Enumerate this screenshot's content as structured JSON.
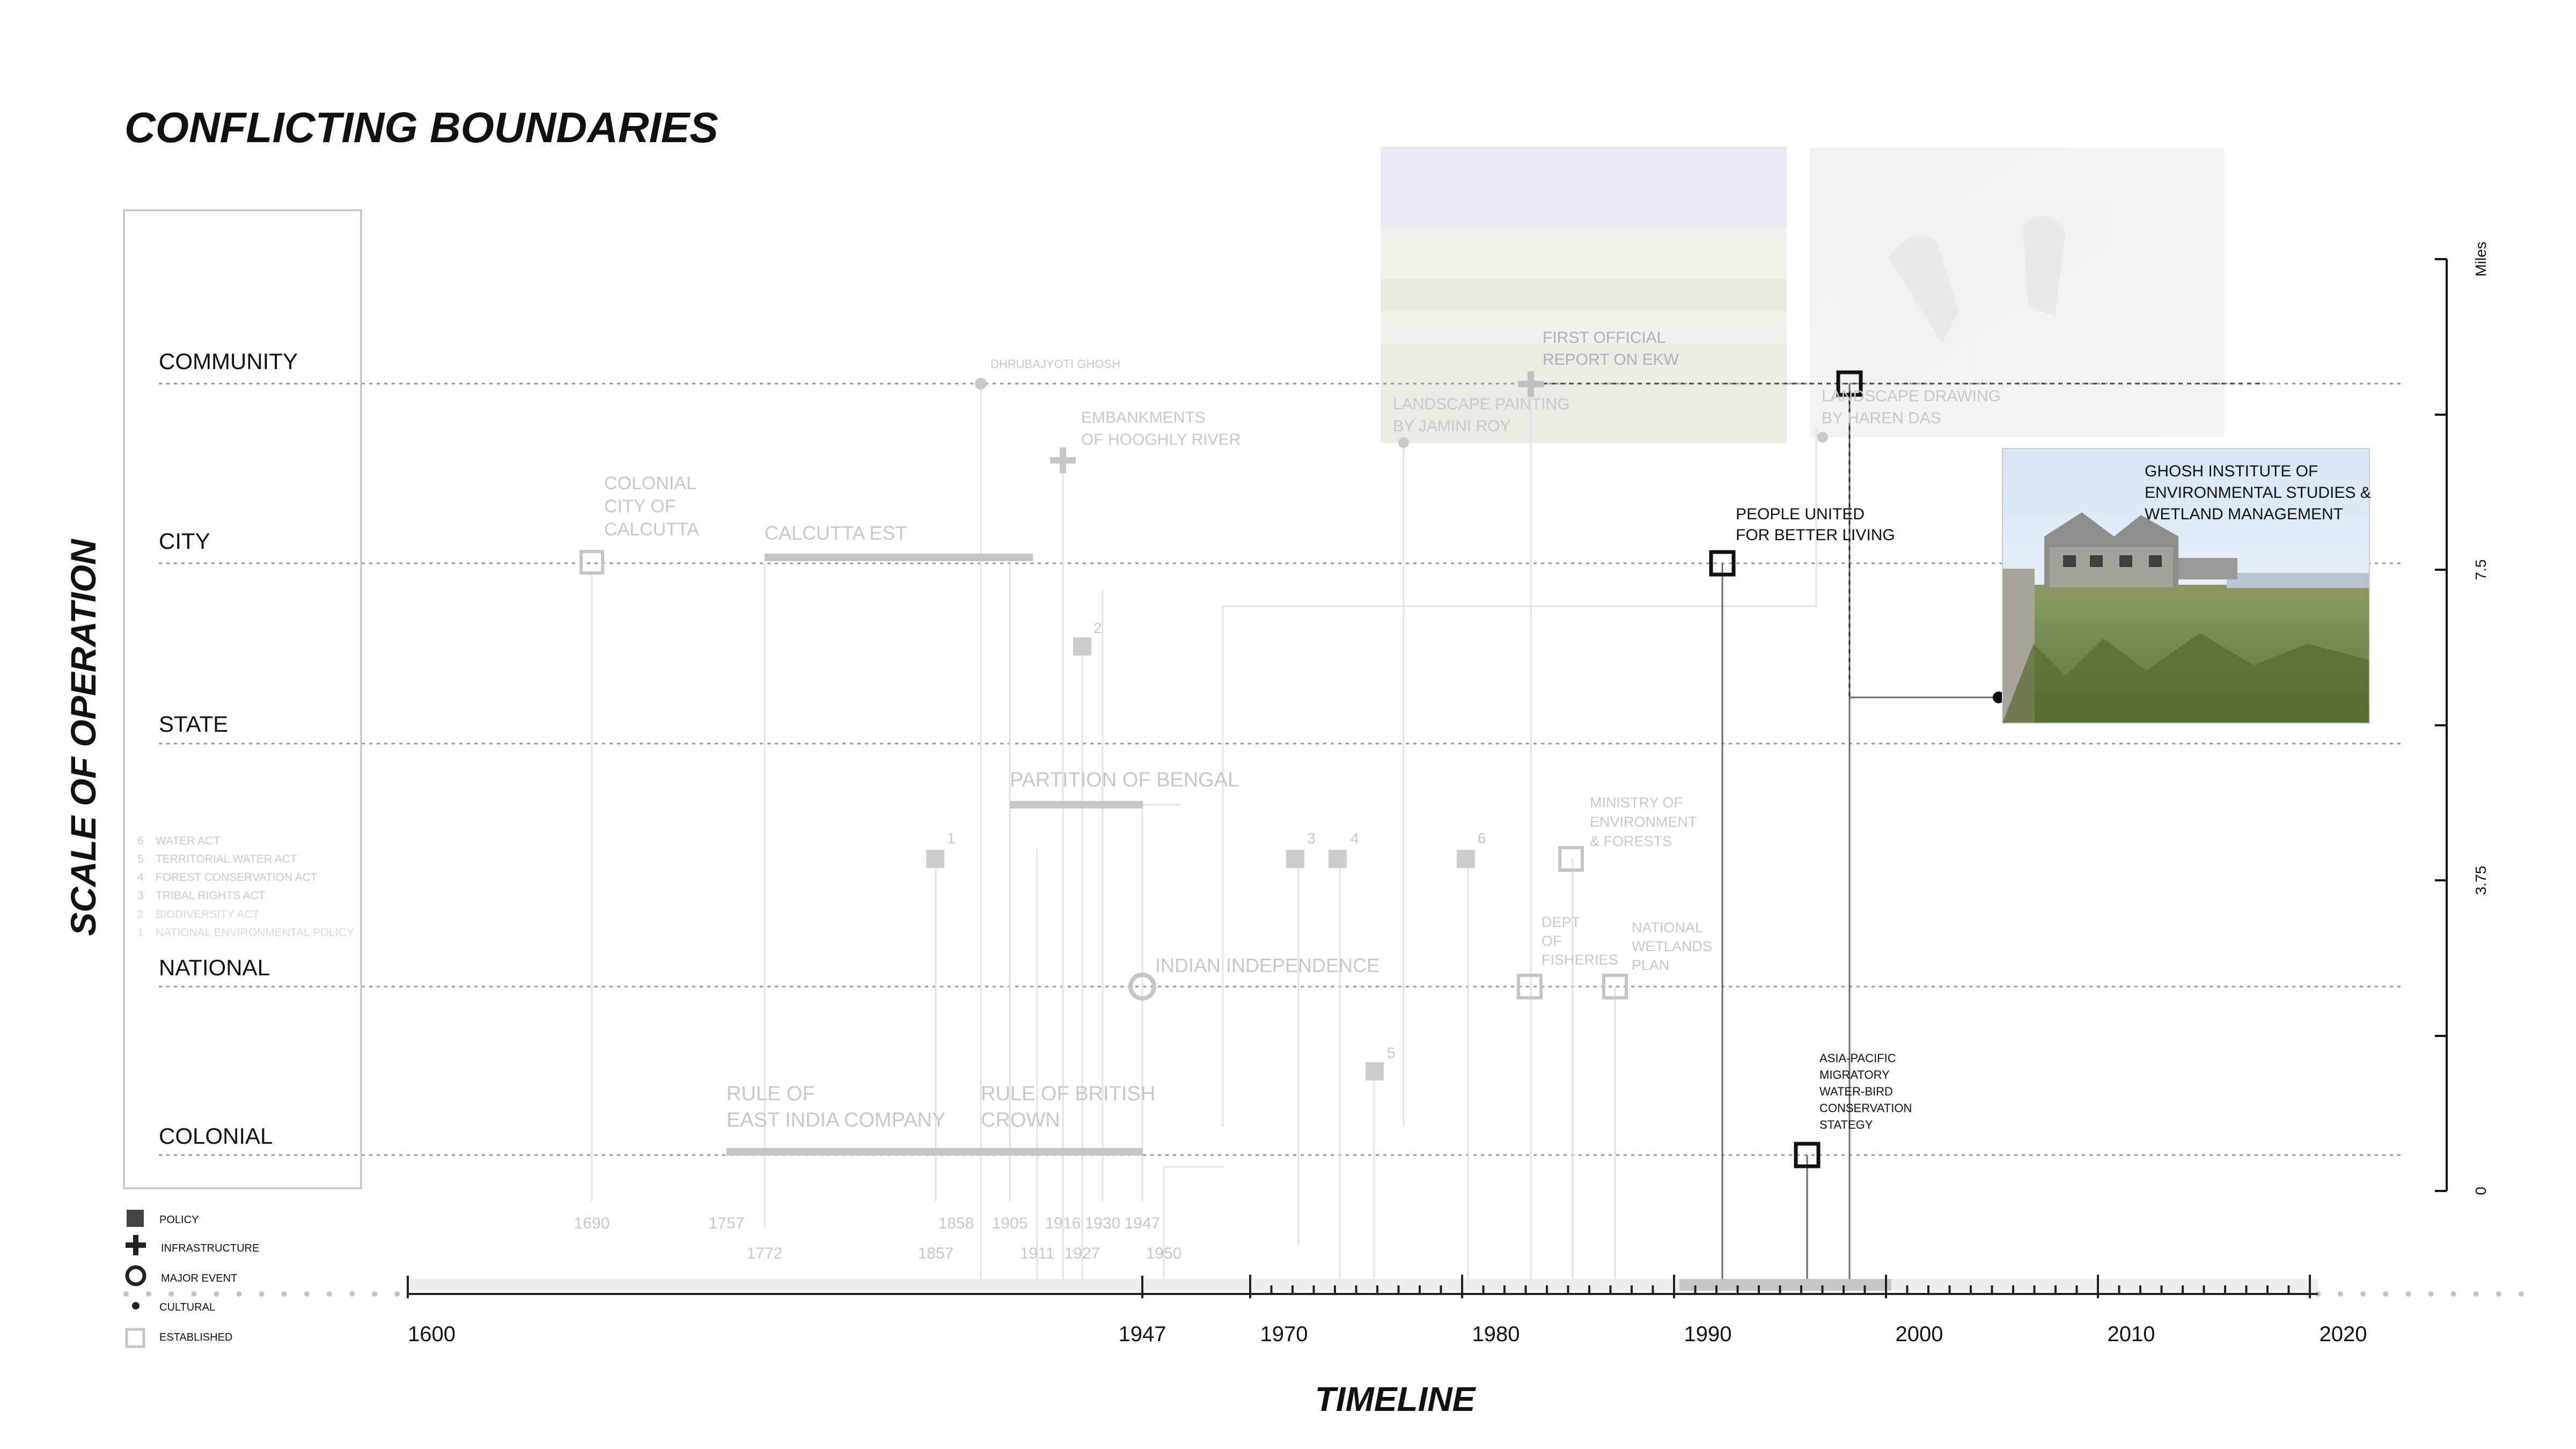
{
  "title": "CONFLICTING BOUNDARIES",
  "y_axis_title": "SCALE OF OPERATION",
  "x_axis_title": "TIMELINE",
  "scale_unit": "Miles",
  "scale_ticks": [
    "0",
    "3.75",
    "7.5"
  ],
  "levels": [
    "COMMUNITY",
    "CITY",
    "STATE",
    "NATIONAL",
    "COLONIAL"
  ],
  "acts": [
    {
      "num": "6",
      "label": "WATER  ACT"
    },
    {
      "num": "5",
      "label": "TERRITORIAL WATER ACT"
    },
    {
      "num": "4",
      "label": "FOREST CONSERVATION ACT"
    },
    {
      "num": "3",
      "label": "TRIBAL RIGHTS  ACT"
    },
    {
      "num": "2",
      "label": "BIODIVERSITY  ACT"
    },
    {
      "num": "1",
      "label": "NATIONAL ENVIRONMENTAL POLICY"
    }
  ],
  "legend": [
    {
      "icon": "policy-square-icon",
      "label": "POLICY"
    },
    {
      "icon": "infrastructure-cross-icon",
      "label": "INFRASTRUCTURE"
    },
    {
      "icon": "major-event-ring-icon",
      "label": "MAJOR EVENT"
    },
    {
      "icon": "cultural-dot-icon",
      "label": "CULTURAL"
    },
    {
      "icon": "established-square-icon",
      "label": "ESTABLISHED"
    }
  ],
  "axis_labels": [
    "1600",
    "1947",
    "1970",
    "1980",
    "1990",
    "2000",
    "2010",
    "2020"
  ],
  "year_labels_row1": [
    "1690",
    "1757",
    "1858",
    "1905",
    "1916",
    "1930",
    "1947"
  ],
  "year_labels_row2": [
    "1772",
    "1857",
    "1911",
    "1927",
    "1950"
  ],
  "events": {
    "dhrubajyoti": "DHRUBAJYOTI GHOSH",
    "embankments": [
      "EMBANKMENTS",
      "OF HOOGHLY RIVER"
    ],
    "first_report": [
      "FIRST OFFICIAL",
      "REPORT ON EKW"
    ],
    "painting": [
      "LANDSCAPE PAINTING",
      "BY JAMINI ROY"
    ],
    "drawing": [
      "LANDSCAPE DRAWING",
      "BY HAREN DAS"
    ],
    "colonial_city": [
      "COLONIAL",
      "CITY OF",
      "CALCUTTA"
    ],
    "calcutta_est": "CALCUTTA EST",
    "people_united": [
      "PEOPLE UNITED",
      "FOR BETTER LIVING"
    ],
    "ghosh_institute": [
      "GHOSH INSTITUTE OF",
      "ENVIRONMENTAL STUDIES &",
      "WETLAND MANAGEMENT"
    ],
    "partition": "PARTITION OF BENGAL",
    "ministry": [
      "MINISTRY OF",
      "ENVIRONMENT",
      "& FORESTS"
    ],
    "independence": "INDIAN INDEPENDENCE",
    "fisheries": [
      "DEPT",
      "OF",
      "FISHERIES"
    ],
    "wetlands_plan": [
      "NATIONAL",
      "WETLANDS",
      "PLAN"
    ],
    "east_india": [
      "RULE OF",
      "EAST INDIA COMPANY"
    ],
    "british_crown": [
      "RULE OF BRITISH",
      "CROWN"
    ],
    "asia_pacific": [
      "ASIA-PACIFIC",
      "MIGRATORY",
      "WATER-BIRD",
      "CONSERVATION",
      "STATEGY"
    ]
  },
  "policy_numbers": [
    "1",
    "2",
    "3",
    "4",
    "5",
    "6"
  ]
}
